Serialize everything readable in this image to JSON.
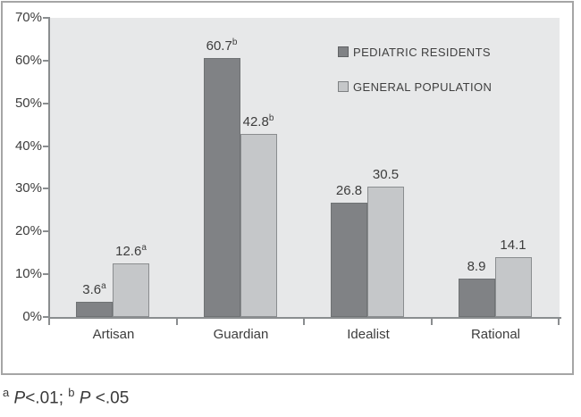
{
  "figure": {
    "footnote": {
      "sup_a": "a",
      "p_label_1": "P",
      "text_1": "<.01; ",
      "sup_b": "b",
      "p_label_2": "P",
      "text_2": " <.05"
    }
  },
  "chart_data": {
    "type": "bar",
    "title": "",
    "xlabel": "",
    "ylabel": "",
    "categories": [
      "Artisan",
      "Guardian",
      "Idealist",
      "Rational"
    ],
    "series": [
      {
        "name": "PEDIATRIC RESIDENTS",
        "values": [
          3.6,
          60.7,
          26.8,
          8.9
        ],
        "value_superscripts": [
          "a",
          "b",
          "",
          ""
        ],
        "color": "#808285",
        "border_color": "#6f7274"
      },
      {
        "name": "GENERAL POPULATION",
        "values": [
          12.6,
          42.8,
          30.5,
          14.1
        ],
        "value_superscripts": [
          "a",
          "b",
          "",
          ""
        ],
        "color": "#c5c7c9",
        "border_color": "#8a8d8f"
      }
    ],
    "ylim": [
      0,
      70
    ],
    "y_ticks": [
      "0%",
      "10%",
      "20%",
      "30%",
      "40%",
      "50%",
      "60%",
      "70%"
    ],
    "grid": false,
    "legend_position": "upper-right-inside",
    "plot_background": "#e7e8e9",
    "axis_color": "#8a8d8f"
  }
}
